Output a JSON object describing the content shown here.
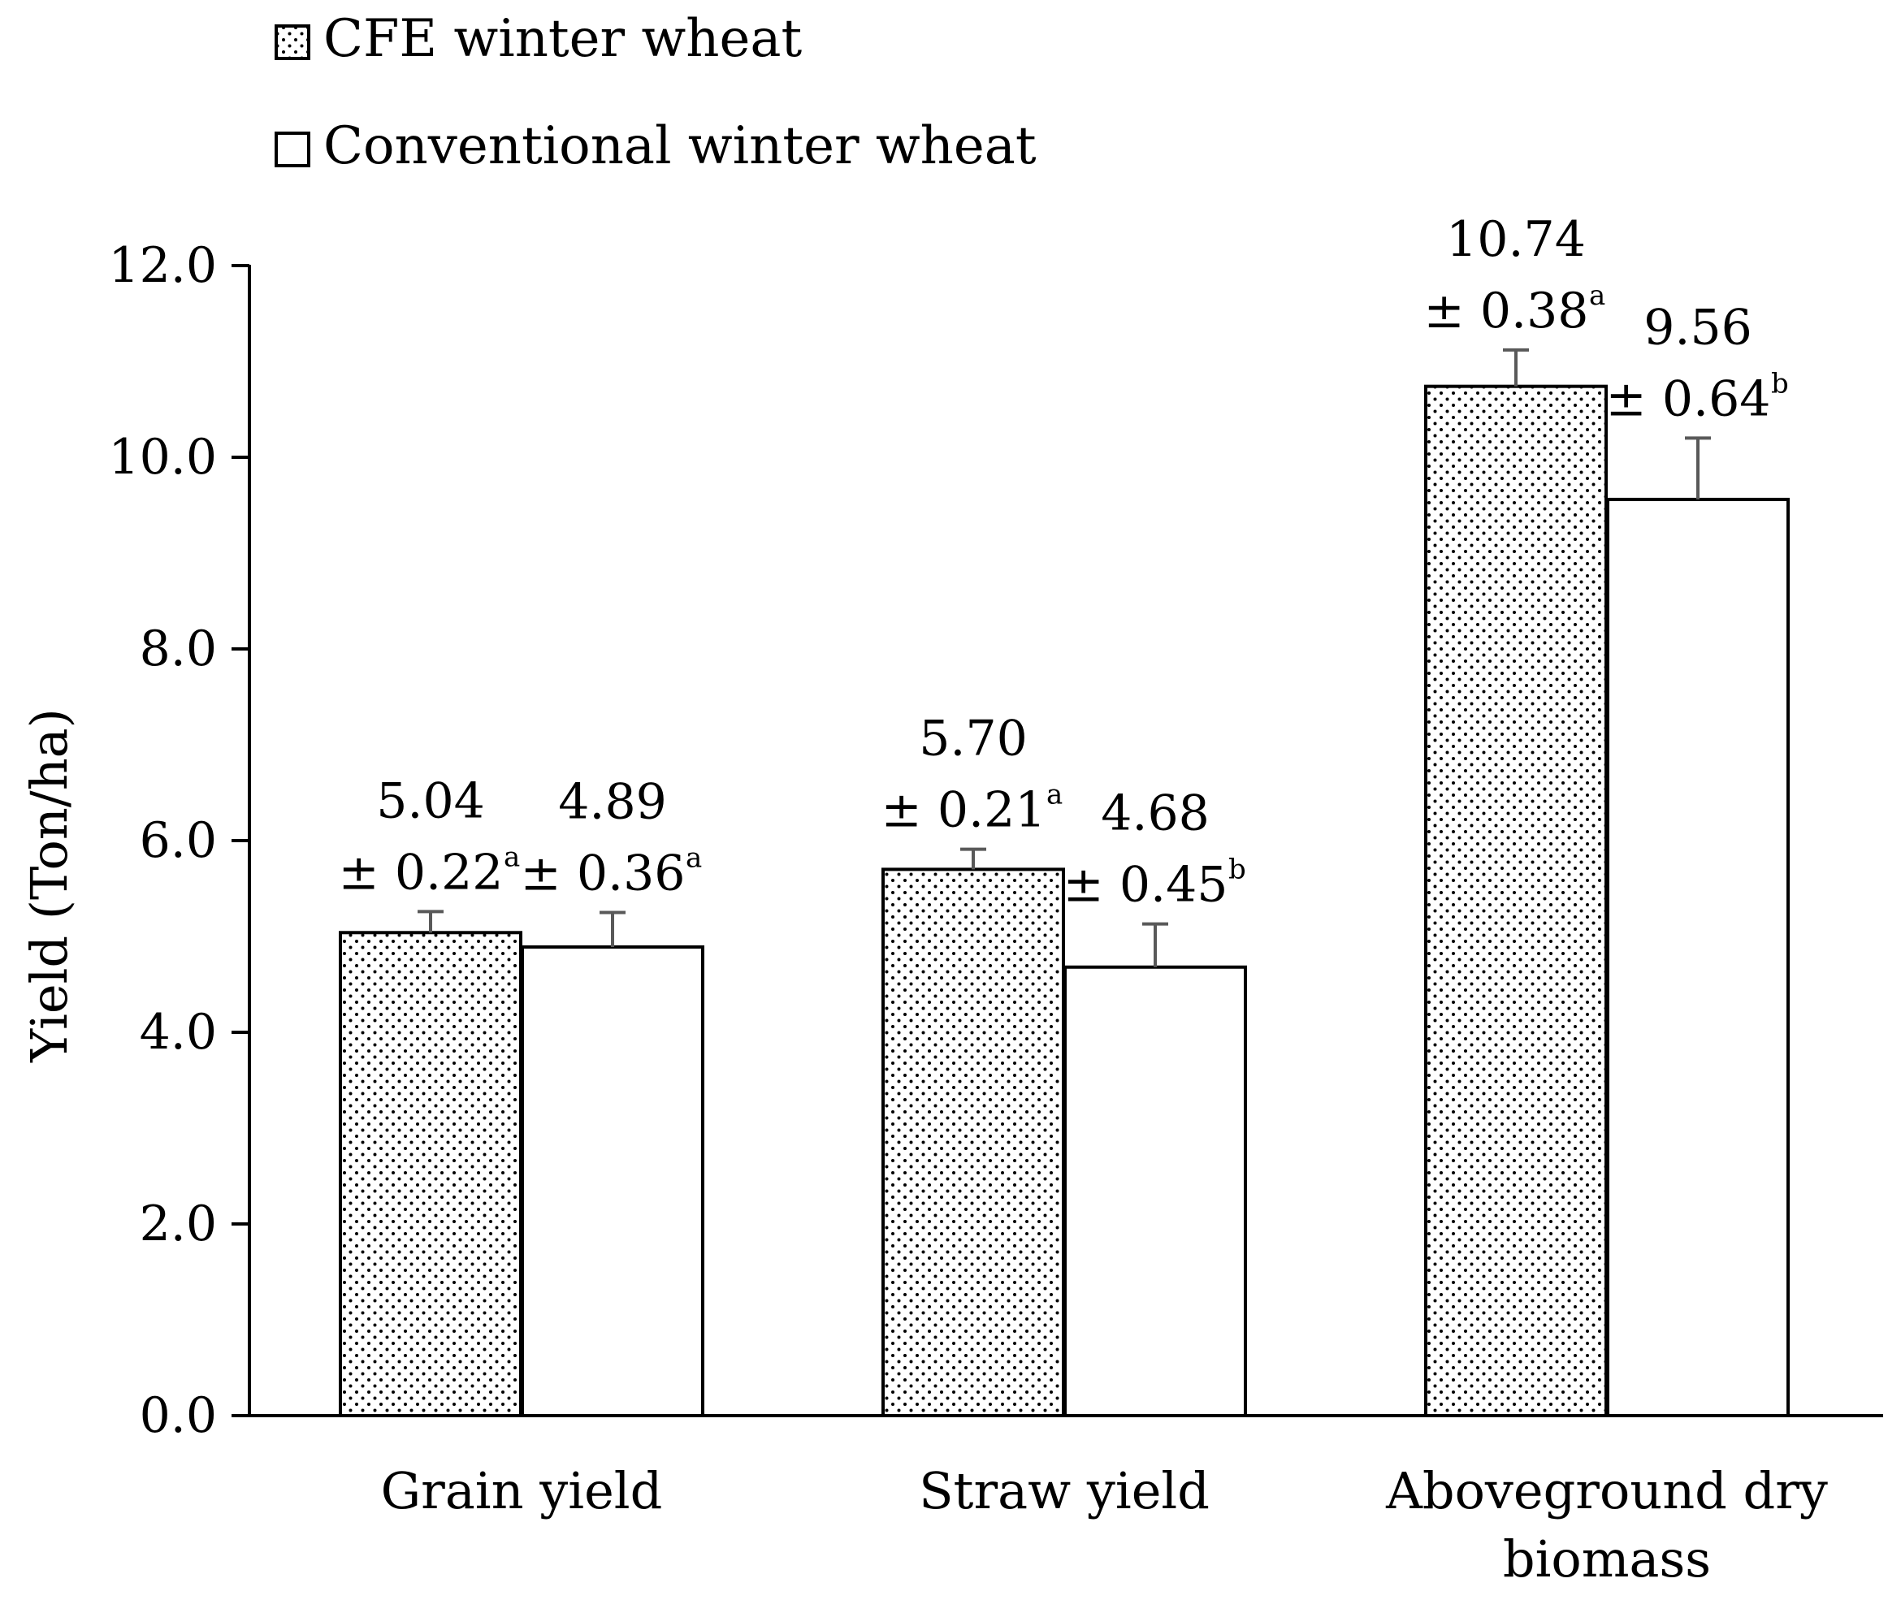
{
  "chart_data": {
    "type": "bar",
    "title": "",
    "xlabel": "",
    "ylabel": "Yield (Ton/ha)",
    "ylim": [
      0,
      12
    ],
    "yticks": [
      "0.0",
      "2.0",
      "4.0",
      "6.0",
      "8.0",
      "10.0",
      "12.0"
    ],
    "grid": false,
    "legend_position": "top-left",
    "categories": [
      [
        "Grain yield"
      ],
      [
        "Straw yield"
      ],
      [
        "Aboveground dry",
        "biomass"
      ]
    ],
    "series": [
      {
        "name": "CFE winter wheat",
        "pattern": "dotted",
        "values": [
          5.04,
          5.7,
          10.74
        ],
        "errors": [
          0.22,
          0.21,
          0.38
        ],
        "value_labels": [
          "5.04",
          "5.70",
          "10.74"
        ],
        "error_labels": [
          "± 0.22",
          "± 0.21",
          "± 0.38"
        ],
        "letters": [
          "a",
          "a",
          "a"
        ]
      },
      {
        "name": "Conventional winter wheat",
        "pattern": "solid",
        "values": [
          4.89,
          4.68,
          9.56
        ],
        "errors": [
          0.36,
          0.45,
          0.64
        ],
        "value_labels": [
          "4.89",
          "4.68",
          "9.56"
        ],
        "error_labels": [
          "± 0.36",
          "± 0.45",
          "± 0.64"
        ],
        "letters": [
          "a",
          "b",
          "b"
        ]
      }
    ],
    "colors": {
      "bar_stroke": "#000000",
      "bar_fill": "#ffffff",
      "dot": "#000000",
      "error_bar": "#595959"
    }
  }
}
